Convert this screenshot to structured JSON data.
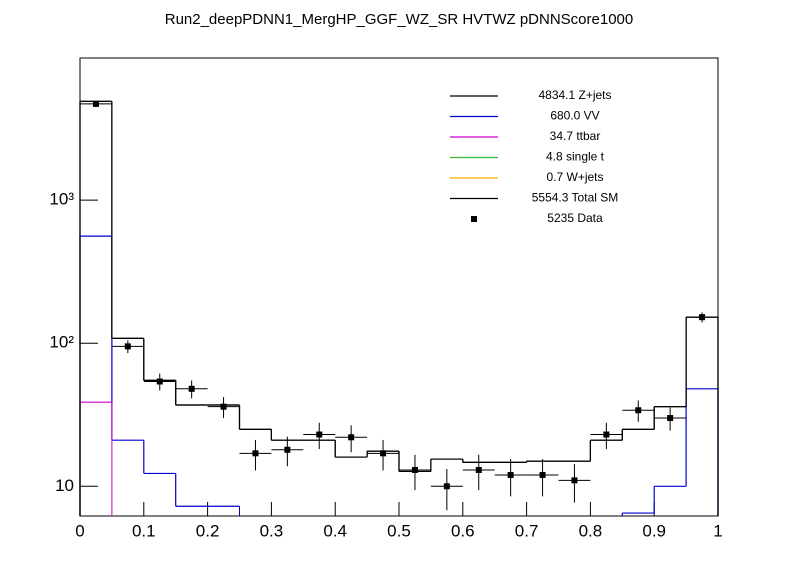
{
  "chart_data": {
    "type": "histogram",
    "title": "Run2_deepPDNN1_MergHP_GGF_WZ_SR HVTWZ  pDNNScore1000",
    "bins": [
      0,
      0.05,
      0.1,
      0.15,
      0.2,
      0.25,
      0.3,
      0.35,
      0.4,
      0.45,
      0.5,
      0.55,
      0.6,
      0.65,
      0.7,
      0.75,
      0.8,
      0.85,
      0.9,
      0.95,
      1
    ],
    "xlim": [
      0,
      1
    ],
    "xticks": [
      0,
      0.1,
      0.2,
      0.3,
      0.4,
      0.5,
      0.6,
      0.7,
      0.8,
      0.9,
      1
    ],
    "ylim": [
      6.2,
      9840
    ],
    "log_y": true,
    "yticks": [
      10,
      {
        "value": 100,
        "label": "10²"
      },
      {
        "value": 1000,
        "label": "10³"
      }
    ],
    "series": [
      {
        "name": "4834.1 Z+jets",
        "color": "#000000",
        "values": [
          4900,
          108,
          55,
          37,
          37,
          25,
          21,
          21,
          16,
          17.6,
          12.7,
          15.5,
          14.7,
          14.7,
          15,
          15,
          21,
          25,
          36,
          152
        ]
      },
      {
        "name": "680.0 VV",
        "color": "#0000cc",
        "values": [
          560,
          21,
          12.3,
          7.25,
          7.25,
          null,
          null,
          null,
          null,
          null,
          null,
          null,
          null,
          null,
          null,
          null,
          null,
          6.5,
          10,
          48
        ]
      },
      {
        "name": "34.7 ttbar",
        "color": "#cc00cc",
        "values": [
          38.7,
          null,
          null,
          null,
          null,
          null,
          null,
          null,
          null,
          null,
          null,
          null,
          null,
          null,
          null,
          null,
          null,
          null,
          null,
          null
        ]
      },
      {
        "name": "4.8 single t",
        "color": "#33bb33",
        "values": [
          null,
          null,
          null,
          null,
          null,
          null,
          null,
          null,
          null,
          null,
          null,
          null,
          null,
          null,
          null,
          null,
          null,
          null,
          null,
          null
        ]
      },
      {
        "name": "0.7 W+jets",
        "color": "#ffaa00",
        "values": [
          null,
          null,
          null,
          null,
          null,
          null,
          null,
          null,
          null,
          null,
          null,
          null,
          null,
          null,
          null,
          null,
          null,
          null,
          null,
          null
        ]
      },
      {
        "name": "5554.3 Total SM",
        "color": "#000000",
        "values": [
          4900,
          108,
          55,
          37,
          37,
          25,
          21,
          21,
          16,
          17.6,
          12.7,
          15.5,
          14.7,
          14.7,
          15,
          15,
          21,
          25,
          36,
          152
        ]
      }
    ],
    "data": {
      "name": "5235 Data",
      "color": "#000000",
      "values": [
        4700,
        95,
        54,
        48,
        36,
        17,
        18,
        23,
        22,
        17,
        13,
        10,
        13,
        12,
        12,
        11,
        23,
        34,
        30,
        152
      ],
      "errors": [
        69,
        9.7,
        7.3,
        6.9,
        6,
        4.1,
        4.2,
        4.8,
        4.7,
        4.1,
        3.6,
        3.2,
        3.6,
        3.5,
        3.5,
        3.3,
        4.8,
        5.8,
        5.5,
        12.3
      ]
    }
  }
}
